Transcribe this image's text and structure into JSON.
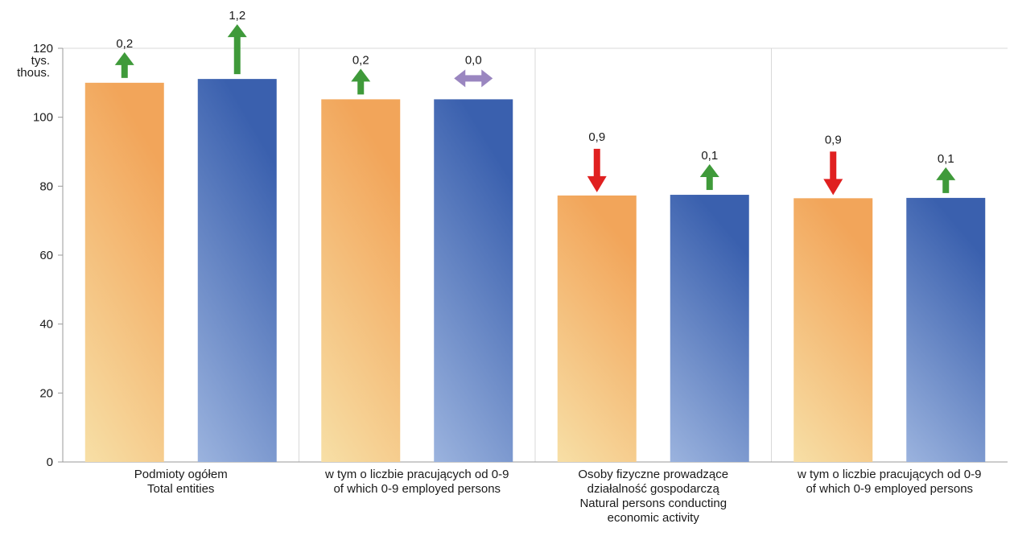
{
  "chart_data": {
    "type": "bar",
    "unit_label": [
      "tys.",
      "thous."
    ],
    "ylim": [
      0,
      120
    ],
    "yticks": [
      0,
      20,
      40,
      60,
      80,
      100,
      120
    ],
    "grid": "vertical separators between groups",
    "colors": {
      "series_a": "#f2a75a",
      "series_b": "#3a62b0",
      "arrow_up": "#3f9a3a",
      "arrow_down": "#e02020",
      "arrow_neutral": "#9a86c0"
    },
    "categories": [
      {
        "lines": [
          "Podmioty ogółem",
          "Total entities"
        ]
      },
      {
        "lines": [
          "w tym o liczbie pracujących od 0-9",
          "of which 0-9 employed persons"
        ]
      },
      {
        "lines": [
          "Osoby fizyczne prowadzące",
          "działalność gospodarczą",
          "Natural persons conducting",
          "economic activity"
        ]
      },
      {
        "lines": [
          "w tym o liczbie pracujących od 0-9",
          "of which 0-9 employed persons"
        ]
      }
    ],
    "series": [
      {
        "values": [
          110,
          105.2,
          77.3,
          76.5
        ],
        "change_labels": [
          "0,2",
          "0,2",
          "0,9",
          "0,9"
        ],
        "change_direction": [
          "up",
          "up",
          "down",
          "down"
        ]
      },
      {
        "values": [
          111.1,
          105.2,
          77.5,
          76.6
        ],
        "change_labels": [
          "1,2",
          "0,0",
          "0,1",
          "0,1"
        ],
        "change_direction": [
          "up",
          "neutral",
          "up",
          "up"
        ]
      }
    ]
  }
}
